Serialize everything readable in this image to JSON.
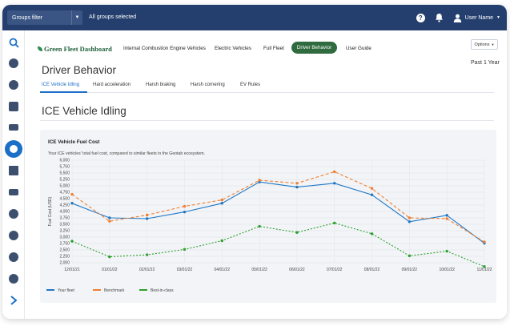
{
  "topbar": {
    "groups_filter": "Groups filter",
    "all_groups": "All groups selected",
    "user_name": "User Name",
    "bg_color": "#243f6e"
  },
  "sidebar": {
    "icons": [
      "search-icon",
      "help-icon",
      "pie-chart-icon",
      "map-icon",
      "truck-icon",
      "driver-icon",
      "bar-chart-icon",
      "camera-icon",
      "puzzle-icon",
      "compass-icon",
      "gear-icon",
      "location-pin-icon",
      "chevron-right-icon"
    ],
    "active_index": 5,
    "accent": "#1b6fc7"
  },
  "nav": {
    "logo": "Green Fleet Dashboard",
    "items": [
      "Internal Combustion Engine Vehicles",
      "Electric Vehicles",
      "Full Fleet",
      "Driver Behavior",
      "User Guide"
    ],
    "active_item": "Driver Behavior",
    "active_color": "#2f6b3e",
    "options_label": "Options",
    "period": "Past 1 Year"
  },
  "page": {
    "title": "Driver Behavior",
    "tabs": [
      "ICE Vehicle Idling",
      "Hard acceleration",
      "Harsh braking",
      "Harsh cornering",
      "EV Rules"
    ],
    "active_tab": "ICE Vehicle Idling",
    "section_title": "ICE Vehicle Idling"
  },
  "card": {
    "title": "ICE Vehicle Fuel Cost",
    "subtitle": "Your ICE vehicles' total fuel cost, compared to similar fleets in the Geotab ecosystem."
  },
  "chart_data": {
    "type": "line",
    "x": [
      "12/01/21",
      "01/01/22",
      "02/01/22",
      "03/01/22",
      "04/01/22",
      "05/01/22",
      "06/01/22",
      "07/01/22",
      "08/01/22",
      "09/01/22",
      "10/01/22",
      "11/01/22"
    ],
    "ylabel": "Fuel Cost (USD)",
    "ylim": [
      2000,
      6000
    ],
    "yticks": [
      2000,
      2250,
      2500,
      2750,
      3000,
      3250,
      3500,
      3750,
      4000,
      4250,
      4500,
      4750,
      5000,
      5250,
      5500,
      5750,
      6000
    ],
    "ytick_labels": [
      "2,000",
      "2,250",
      "2,500",
      "2,750",
      "3,000",
      "3,250",
      "3,500",
      "3,750",
      "4,000",
      "4,250",
      "4,500",
      "4,750",
      "5,000",
      "5,250",
      "5,500",
      "5,750",
      "6,000"
    ],
    "grid": true,
    "legend_position": "bottom-left",
    "series": [
      {
        "name": "Your fleet",
        "color": "#1f77c4",
        "style": "solid",
        "values": [
          4320,
          3750,
          3720,
          3980,
          4320,
          5150,
          4950,
          5100,
          4650,
          3600,
          3850,
          2760
        ]
      },
      {
        "name": "Benchmark",
        "color": "#f07f30",
        "style": "dashed",
        "values": [
          4670,
          3620,
          3860,
          4200,
          4450,
          5220,
          5100,
          5550,
          4900,
          3750,
          3720,
          2810
        ]
      },
      {
        "name": "Best-in-class",
        "color": "#2ea02e",
        "style": "dotted",
        "values": [
          2840,
          2230,
          2310,
          2520,
          2860,
          3420,
          3180,
          3550,
          3130,
          2270,
          2450,
          1850
        ]
      }
    ]
  }
}
